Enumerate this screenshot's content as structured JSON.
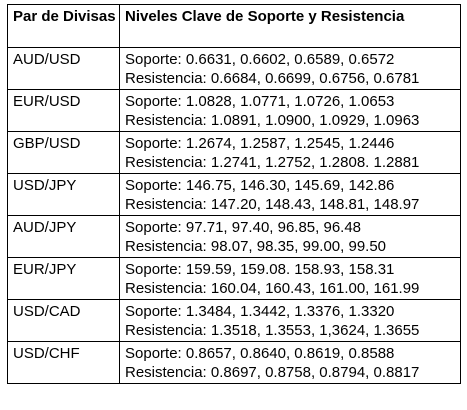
{
  "table": {
    "headers": {
      "pair": "Par de Divisas",
      "levels": "Niveles Clave de Soporte y Resistencia"
    },
    "rows": [
      {
        "pair": "AUD/USD",
        "support": "Soporte: 0.6631, 0.6602, 0.6589, 0.6572",
        "resistance": "Resistencia: 0.6684, 0.6699, 0.6756, 0.6781"
      },
      {
        "pair": "EUR/USD",
        "support": "Soporte: 1.0828, 1.0771, 1.0726, 1.0653",
        "resistance": "Resistencia: 1.0891, 1.0900, 1.0929, 1.0963"
      },
      {
        "pair": "GBP/USD",
        "support": "Soporte: 1.2674, 1.2587, 1.2545, 1.2446",
        "resistance": "Resistencia: 1.2741, 1.2752, 1.2808. 1.2881"
      },
      {
        "pair": "USD/JPY",
        "support": "Soporte: 146.75, 146.30, 145.69, 142.86",
        "resistance": "Resistencia: 147.20, 148.43, 148.81, 148.97"
      },
      {
        "pair": "AUD/JPY",
        "support": "Soporte: 97.71, 97.40, 96.85, 96.48",
        "resistance": "Resistencia: 98.07, 98.35, 99.00, 99.50"
      },
      {
        "pair": "EUR/JPY",
        "support": "Soporte: 159.59, 159.08. 158.93, 158.31",
        "resistance": "Resistencia: 160.04, 160.43, 161.00, 161.99"
      },
      {
        "pair": "USD/CAD",
        "support": "Soporte: 1.3484, 1.3442, 1.3376, 1.3320",
        "resistance": "Resistencia: 1.3518, 1.3553, 1,3624, 1.3655"
      },
      {
        "pair": "USD/CHF",
        "support": "Soporte: 0.8657, 0.8640, 0.8619, 0.8588",
        "resistance": "Resistencia: 0.8697, 0.8758, 0.8794, 0.8817"
      }
    ]
  }
}
